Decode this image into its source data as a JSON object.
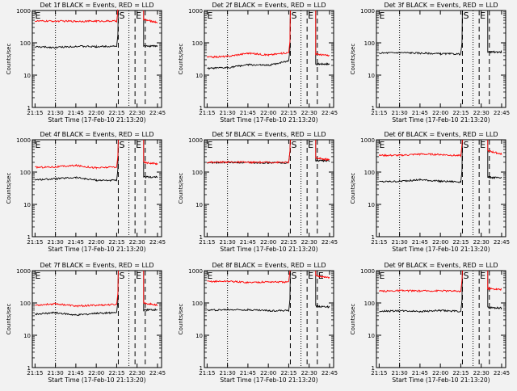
{
  "chart_data": [
    {
      "type": "line",
      "title": "Det 1f BLACK = Events, RED = LLD",
      "xlabel": "Start Time (17-Feb-10 21:13:20)",
      "ylabel": "Counts/sec",
      "x_ticks": [
        "21:15",
        "21:30",
        "21:45",
        "22:00",
        "22:15",
        "22:30",
        "22:45"
      ],
      "y_ticks": [
        "1",
        "10",
        "100",
        "1000"
      ],
      "ylim": [
        1,
        1000
      ],
      "y_scale": "log",
      "markers": [
        "E",
        "S",
        "E"
      ],
      "series": [
        {
          "color": "#000000",
          "x": [
            21.25,
            21.5,
            21.75,
            22.0,
            22.25,
            22.27,
            22.5,
            22.58,
            22.75
          ],
          "y": [
            75,
            72,
            78,
            76,
            80,
            null,
            null,
            78,
            80
          ]
        },
        {
          "color": "#ff0000",
          "x": [
            21.25,
            21.5,
            21.75,
            22.0,
            22.25,
            22.27,
            22.5,
            22.58,
            22.75
          ],
          "y": [
            470,
            470,
            465,
            470,
            470,
            null,
            null,
            520,
            430
          ]
        }
      ]
    },
    {
      "type": "line",
      "title": "Det 2f BLACK = Events, RED = LLD",
      "xlabel": "Start Time (17-Feb-10 21:13:20)",
      "ylabel": "Counts/sec",
      "x_ticks": [
        "21:15",
        "21:30",
        "21:45",
        "22:00",
        "22:15",
        "22:30",
        "22:45"
      ],
      "y_ticks": [
        "1",
        "10",
        "100",
        "1000"
      ],
      "ylim": [
        1,
        1000
      ],
      "y_scale": "log",
      "markers": [
        "E",
        "S",
        "E"
      ],
      "series": [
        {
          "color": "#000000",
          "x": [
            21.25,
            21.5,
            21.75,
            22.0,
            22.25,
            22.27,
            22.5,
            22.58,
            22.75
          ],
          "y": [
            16,
            17,
            21,
            20,
            28,
            null,
            null,
            22,
            22
          ]
        },
        {
          "color": "#ff0000",
          "x": [
            21.25,
            21.5,
            21.75,
            22.0,
            22.25,
            22.27,
            22.5,
            22.58,
            22.75
          ],
          "y": [
            36,
            38,
            48,
            42,
            50,
            null,
            null,
            45,
            40
          ]
        }
      ]
    },
    {
      "type": "line",
      "title": "Det 3f BLACK = Events, RED = LLD",
      "xlabel": "Start Time (17-Feb-10 21:13:20)",
      "ylabel": "Counts/sec",
      "x_ticks": [
        "21:15",
        "21:30",
        "21:45",
        "22:00",
        "22:15",
        "22:30",
        "22:45"
      ],
      "y_ticks": [
        "1",
        "10",
        "100",
        "1000"
      ],
      "ylim": [
        1,
        1000
      ],
      "y_scale": "log",
      "markers": [
        "E",
        "S",
        "E"
      ],
      "series": [
        {
          "color": "#000000",
          "x": [
            21.25,
            21.5,
            21.75,
            22.0,
            22.25,
            22.27,
            22.5,
            22.58,
            22.75
          ],
          "y": [
            48,
            50,
            48,
            46,
            45,
            null,
            null,
            52,
            52
          ]
        }
      ]
    },
    {
      "type": "line",
      "title": "Det 4f BLACK = Events, RED = LLD",
      "xlabel": "Start Time (17-Feb-10 21:13:20)",
      "ylabel": "Counts/sec",
      "x_ticks": [
        "21:15",
        "21:30",
        "21:45",
        "22:00",
        "22:15",
        "22:30",
        "22:45"
      ],
      "y_ticks": [
        "1",
        "10",
        "100",
        "1000"
      ],
      "ylim": [
        1,
        1000
      ],
      "y_scale": "log",
      "markers": [
        "E",
        "S",
        "E"
      ],
      "series": [
        {
          "color": "#000000",
          "x": [
            21.25,
            21.5,
            21.75,
            22.0,
            22.25,
            22.27,
            22.5,
            22.58,
            22.75
          ],
          "y": [
            58,
            62,
            68,
            56,
            55,
            null,
            null,
            70,
            70
          ]
        },
        {
          "color": "#ff0000",
          "x": [
            21.25,
            21.5,
            21.75,
            22.0,
            22.25,
            22.27,
            22.5,
            22.58,
            22.75
          ],
          "y": [
            140,
            145,
            160,
            135,
            145,
            null,
            null,
            200,
            180
          ]
        }
      ]
    },
    {
      "type": "line",
      "title": "Det 5f BLACK = Events, RED = LLD",
      "xlabel": "Start Time (17-Feb-10 21:13:20)",
      "ylabel": "Counts/sec",
      "x_ticks": [
        "21:15",
        "21:30",
        "21:45",
        "22:00",
        "22:15",
        "22:30",
        "22:45"
      ],
      "y_ticks": [
        "1",
        "10",
        "100",
        "1000"
      ],
      "ylim": [
        1,
        1000
      ],
      "y_scale": "log",
      "markers": [
        "E",
        "S",
        "E"
      ],
      "series": [
        {
          "color": "#000000",
          "x": [
            21.25,
            21.5,
            21.75,
            22.0,
            22.25,
            22.27,
            22.5,
            22.58,
            22.75
          ],
          "y": [
            195,
            200,
            195,
            195,
            195,
            null,
            null,
            230,
            220
          ]
        },
        {
          "color": "#ff0000",
          "x": [
            21.25,
            21.5,
            21.75,
            22.0,
            22.25,
            22.27,
            22.5,
            22.58,
            22.75
          ],
          "y": [
            200,
            205,
            200,
            200,
            200,
            null,
            null,
            270,
            240
          ]
        }
      ]
    },
    {
      "type": "line",
      "title": "Det 6f BLACK = Events, RED = LLD",
      "xlabel": "Start Time (17-Feb-10 21:13:20)",
      "ylabel": "Counts/sec",
      "x_ticks": [
        "21:15",
        "21:30",
        "21:45",
        "22:00",
        "22:15",
        "22:30",
        "22:45"
      ],
      "y_ticks": [
        "1",
        "10",
        "100",
        "1000"
      ],
      "ylim": [
        1,
        1000
      ],
      "y_scale": "log",
      "markers": [
        "E",
        "S",
        "E"
      ],
      "series": [
        {
          "color": "#000000",
          "x": [
            21.25,
            21.5,
            21.75,
            22.0,
            22.25,
            22.27,
            22.5,
            22.58,
            22.75
          ],
          "y": [
            50,
            52,
            58,
            52,
            50,
            null,
            null,
            70,
            65
          ]
        },
        {
          "color": "#ff0000",
          "x": [
            21.25,
            21.5,
            21.75,
            22.0,
            22.25,
            22.27,
            22.5,
            22.58,
            22.75
          ],
          "y": [
            330,
            330,
            360,
            350,
            320,
            null,
            null,
            460,
            360
          ]
        }
      ]
    },
    {
      "type": "line",
      "title": "Det 7f BLACK = Events, RED = LLD",
      "xlabel": "Start Time (17-Feb-10 21:13:20)",
      "ylabel": "Counts/sec",
      "x_ticks": [
        "21:15",
        "21:30",
        "21:45",
        "22:00",
        "22:15",
        "22:30",
        "22:45"
      ],
      "y_ticks": [
        "1",
        "10",
        "100",
        "1000"
      ],
      "ylim": [
        1,
        1000
      ],
      "y_scale": "log",
      "markers": [
        "E",
        "S",
        "E"
      ],
      "series": [
        {
          "color": "#000000",
          "x": [
            21.25,
            21.5,
            21.75,
            22.0,
            22.25,
            22.27,
            22.5,
            22.58,
            22.75
          ],
          "y": [
            45,
            50,
            42,
            48,
            50,
            null,
            null,
            60,
            62
          ]
        },
        {
          "color": "#ff0000",
          "x": [
            21.25,
            21.5,
            21.75,
            22.0,
            22.25,
            22.27,
            22.5,
            22.58,
            22.75
          ],
          "y": [
            85,
            95,
            80,
            85,
            90,
            null,
            null,
            100,
            85
          ]
        }
      ]
    },
    {
      "type": "line",
      "title": "Det 8f BLACK = Events, RED = LLD",
      "xlabel": "Start Time (17-Feb-10 21:13:20)",
      "ylabel": "Counts/sec",
      "x_ticks": [
        "21:15",
        "21:30",
        "21:45",
        "22:00",
        "22:15",
        "22:30",
        "22:45"
      ],
      "y_ticks": [
        "1",
        "10",
        "100",
        "1000"
      ],
      "ylim": [
        1,
        1000
      ],
      "y_scale": "log",
      "markers": [
        "E",
        "S",
        "E",
        "E"
      ],
      "series": [
        {
          "color": "#000000",
          "x": [
            21.25,
            21.5,
            21.75,
            22.0,
            22.25,
            22.27,
            22.5,
            22.58,
            22.75
          ],
          "y": [
            60,
            62,
            62,
            58,
            58,
            null,
            null,
            80,
            75
          ]
        },
        {
          "color": "#ff0000",
          "x": [
            21.25,
            21.5,
            21.75,
            22.0,
            22.25,
            22.27,
            22.5,
            22.58,
            22.75
          ],
          "y": [
            460,
            470,
            430,
            450,
            440,
            null,
            null,
            700,
            600
          ]
        }
      ]
    },
    {
      "type": "line",
      "title": "Det 9f BLACK = Events, RED = LLD",
      "xlabel": "Start Time (17-Feb-10 21:13:20)",
      "ylabel": "Counts/sec",
      "x_ticks": [
        "21:15",
        "21:30",
        "21:45",
        "22:00",
        "22:15",
        "22:30",
        "22:45"
      ],
      "y_ticks": [
        "1",
        "10",
        "100",
        "1000"
      ],
      "ylim": [
        1,
        1000
      ],
      "y_scale": "log",
      "markers": [
        "E",
        "S",
        "E"
      ],
      "series": [
        {
          "color": "#000000",
          "x": [
            21.25,
            21.5,
            21.75,
            22.0,
            22.25,
            22.27,
            22.5,
            22.58,
            22.75
          ],
          "y": [
            55,
            57,
            55,
            58,
            55,
            null,
            null,
            72,
            70
          ]
        },
        {
          "color": "#ff0000",
          "x": [
            21.25,
            21.5,
            21.75,
            22.0,
            22.25,
            22.27,
            22.5,
            22.58,
            22.75
          ],
          "y": [
            230,
            240,
            235,
            240,
            230,
            null,
            null,
            280,
            260
          ]
        }
      ]
    }
  ]
}
